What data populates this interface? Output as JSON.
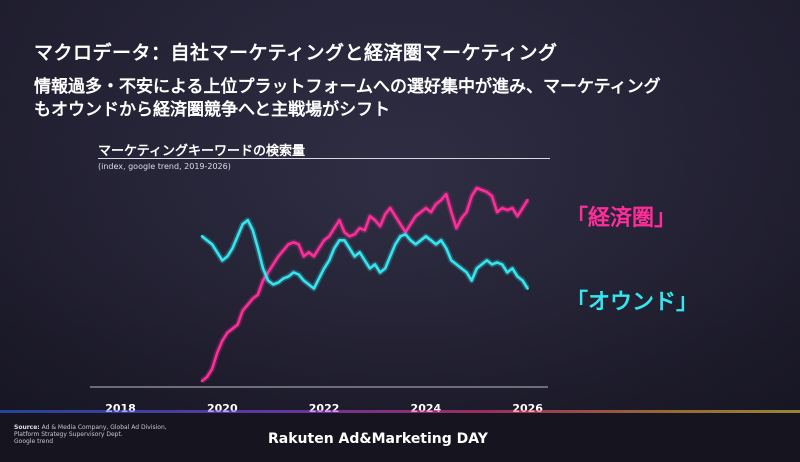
{
  "slide": {
    "title": "マクロデータ：自社マーケティングと経済圏マーケティング",
    "lead_lines": [
      "情報過多・不安による上位プラットフォームへの選好集中が進み、マーケティング",
      "もオウンドから経済圏競争へと主戦場がシフト"
    ],
    "footer": {
      "source_label": "Source:",
      "source_lines": [
        "Ad & Media Company, Global Ad Division,",
        "Platform Strategy Supervisory Dept.",
        "Google trend"
      ],
      "brand": "Rakuten Ad&Marketing DAY"
    }
  },
  "chart_data": {
    "type": "line",
    "title": "マーケティングキーワードの検索量",
    "subtitle": "(index, google trend, 2019-2026)",
    "xlim": [
      2017.4,
      2026.4
    ],
    "ylim": [
      0,
      100
    ],
    "x_ticks": [
      2018,
      2020,
      2022,
      2024,
      2026
    ],
    "x_tick_labels": [
      "2018",
      "2020",
      "2022",
      "2024",
      "2026"
    ],
    "series": [
      {
        "name": "「経済圏」",
        "color": "#ff2d9a",
        "x": [
          2019.6,
          2019.7,
          2019.8,
          2019.9,
          2020.0,
          2020.1,
          2020.2,
          2020.3,
          2020.4,
          2020.5,
          2020.6,
          2020.7,
          2020.8,
          2020.9,
          2021.0,
          2021.1,
          2021.2,
          2021.3,
          2021.4,
          2021.5,
          2021.6,
          2021.7,
          2021.8,
          2021.9,
          2022.0,
          2022.1,
          2022.2,
          2022.3,
          2022.4,
          2022.5,
          2022.6,
          2022.7,
          2022.8,
          2022.9,
          2023.0,
          2023.1,
          2023.2,
          2023.3,
          2023.4,
          2023.5,
          2023.6,
          2023.7,
          2023.8,
          2023.9,
          2024.0,
          2024.1,
          2024.2,
          2024.3,
          2024.4,
          2024.5,
          2024.6,
          2024.7,
          2024.8,
          2024.9,
          2025.0,
          2025.1,
          2025.2,
          2025.3,
          2025.4,
          2025.5,
          2025.6,
          2025.7,
          2025.8,
          2025.9,
          2026.0
        ],
        "y": [
          2,
          4,
          8,
          16,
          22,
          26,
          28,
          30,
          37,
          40,
          43,
          45,
          52,
          56,
          60,
          64,
          67,
          70,
          71,
          70,
          64,
          66,
          64,
          68,
          72,
          74,
          78,
          82,
          76,
          74,
          75,
          78,
          77,
          84,
          82,
          79,
          85,
          88,
          84,
          80,
          76,
          80,
          84,
          86,
          88,
          86,
          90,
          92,
          95,
          86,
          78,
          83,
          86,
          94,
          98,
          97,
          96,
          94,
          86,
          88,
          87,
          88,
          84,
          88,
          92
        ]
      },
      {
        "name": "「オウンド」",
        "color": "#33e6f0",
        "x": [
          2019.6,
          2019.7,
          2019.8,
          2019.9,
          2020.0,
          2020.1,
          2020.2,
          2020.3,
          2020.4,
          2020.5,
          2020.6,
          2020.7,
          2020.8,
          2020.9,
          2021.0,
          2021.1,
          2021.2,
          2021.3,
          2021.4,
          2021.5,
          2021.6,
          2021.7,
          2021.8,
          2021.9,
          2022.0,
          2022.1,
          2022.2,
          2022.3,
          2022.4,
          2022.5,
          2022.6,
          2022.7,
          2022.8,
          2022.9,
          2023.0,
          2023.1,
          2023.2,
          2023.3,
          2023.4,
          2023.5,
          2023.6,
          2023.7,
          2023.8,
          2023.9,
          2024.0,
          2024.1,
          2024.2,
          2024.3,
          2024.4,
          2024.5,
          2024.6,
          2024.7,
          2024.8,
          2024.9,
          2025.0,
          2025.1,
          2025.2,
          2025.3,
          2025.4,
          2025.5,
          2025.6,
          2025.7,
          2025.8,
          2025.9,
          2026.0
        ],
        "y": [
          74,
          72,
          70,
          66,
          62,
          64,
          68,
          74,
          80,
          82,
          77,
          68,
          58,
          52,
          50,
          51,
          53,
          54,
          56,
          55,
          52,
          50,
          48,
          53,
          58,
          62,
          68,
          72,
          72,
          68,
          64,
          66,
          62,
          58,
          60,
          56,
          58,
          64,
          70,
          74,
          75,
          72,
          70,
          72,
          74,
          72,
          70,
          72,
          68,
          62,
          60,
          58,
          56,
          52,
          58,
          60,
          62,
          60,
          61,
          60,
          56,
          58,
          54,
          52,
          48
        ]
      }
    ]
  }
}
